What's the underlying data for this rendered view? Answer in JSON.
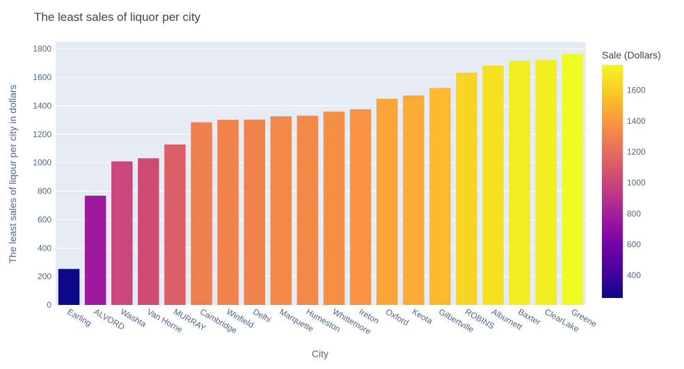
{
  "chart_data": {
    "type": "bar",
    "title": "The least sales of liquor per city",
    "xlabel": "City",
    "ylabel": "The least sales of liqour per city in dollars",
    "categories": [
      "Earling",
      "ALVORD",
      "Washta",
      "Van Horne",
      "MURRAY",
      "Cambridge",
      "Winfield",
      "Delhi",
      "Marquette",
      "Humeston",
      "Whittemore",
      "Ireton",
      "Oxford",
      "Keota",
      "Gilbertville",
      "ROBINS",
      "Alburnett",
      "Baxter",
      "ClearLake",
      "Greene"
    ],
    "values": [
      253,
      768,
      1009,
      1031,
      1128,
      1284,
      1302,
      1303,
      1326,
      1330,
      1359,
      1375,
      1449,
      1473,
      1525,
      1632,
      1683,
      1717,
      1722,
      1765
    ],
    "ylim": [
      0,
      1850
    ],
    "yticks": [
      0,
      200,
      400,
      600,
      800,
      1000,
      1200,
      1400,
      1600,
      1800
    ],
    "grid": true,
    "colorscale": "plasma",
    "colorbar": {
      "title": "Sale (Dollars)",
      "range": [
        253,
        1765
      ],
      "ticks": [
        400,
        600,
        800,
        1000,
        1200,
        1400,
        1600
      ]
    },
    "colors": {
      "plot_bg": "#e5ecf6",
      "grid": "#ffffff",
      "tick_text": "#506784",
      "title_text": "#444444"
    }
  }
}
